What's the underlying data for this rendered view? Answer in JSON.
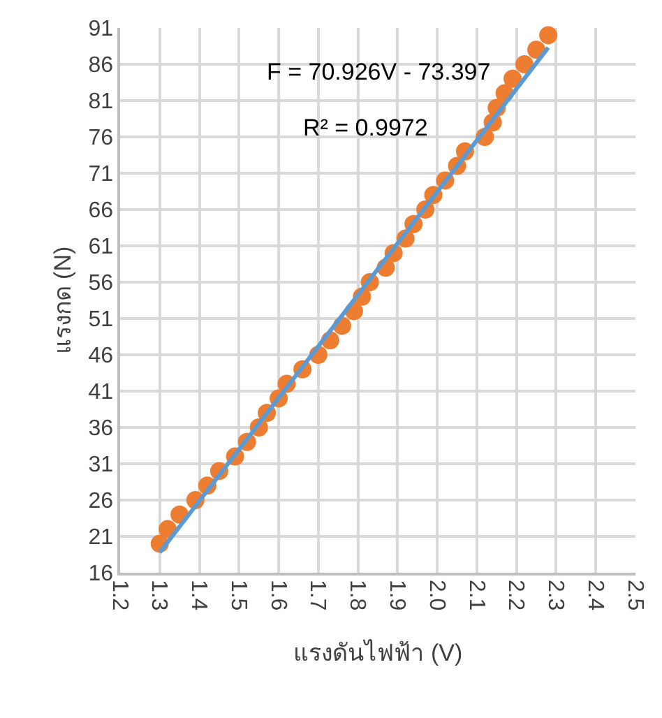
{
  "chart_data": {
    "type": "scatter",
    "xlabel": "แรงดันไฟฟ้า (V)",
    "ylabel": "แรงกด (N)",
    "annotations": [
      "F = 70.926V - 73.397",
      "R² = 0.9972"
    ],
    "series": [
      {
        "color": "#ed7d31",
        "marker": "circle",
        "x": [
          1.3,
          1.32,
          1.35,
          1.39,
          1.42,
          1.45,
          1.49,
          1.52,
          1.55,
          1.57,
          1.6,
          1.62,
          1.66,
          1.7,
          1.73,
          1.76,
          1.79,
          1.81,
          1.83,
          1.87,
          1.89,
          1.92,
          1.94,
          1.97,
          1.99,
          2.02,
          2.05,
          2.07,
          2.12,
          2.14,
          2.15,
          2.17,
          2.19,
          2.22,
          2.25,
          2.28
        ],
        "values": [
          20,
          22,
          24,
          26,
          28,
          30,
          32,
          34,
          36,
          38,
          40,
          42,
          44,
          46,
          48,
          50,
          52,
          54,
          56,
          58,
          60,
          62,
          64,
          66,
          68,
          70,
          72,
          74,
          76,
          78,
          80,
          82,
          84,
          86,
          88,
          90
        ]
      },
      {
        "type": "line",
        "color": "#5b9bd5",
        "x": [
          1.3,
          2.28
        ],
        "values": [
          18.8,
          88.3
        ]
      }
    ],
    "xlim": [
      1.2,
      2.5
    ],
    "xticks": [
      1.2,
      1.3,
      1.4,
      1.5,
      1.6,
      1.7,
      1.8,
      1.9,
      {
        "value": 2.0,
        "label": "2.0"
      },
      2.1,
      2.2,
      2.3,
      2.4,
      2.5
    ],
    "ylim": [
      16,
      91
    ],
    "yticks": [
      16,
      21,
      26,
      31,
      36,
      41,
      46,
      51,
      56,
      61,
      66,
      71,
      76,
      81,
      86,
      91
    ],
    "grid": true,
    "legend": false
  }
}
